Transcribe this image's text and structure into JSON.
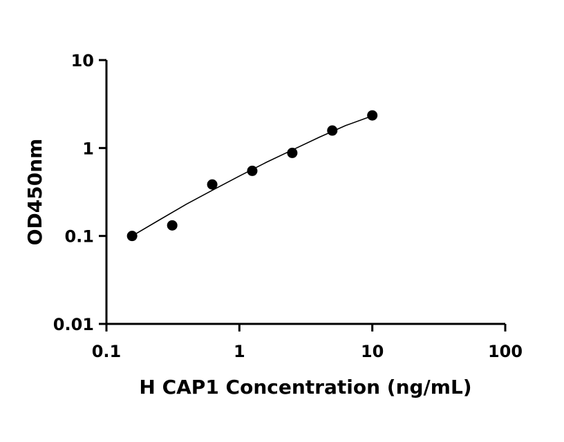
{
  "chart_data": {
    "type": "scatter",
    "title": "",
    "xlabel": "H CAP1 Concentration (ng/mL)",
    "ylabel": "OD450nm",
    "xscale": "log",
    "yscale": "log",
    "xlim": [
      0.1,
      100
    ],
    "ylim": [
      0.01,
      10
    ],
    "xticks": [
      {
        "value": 0.1,
        "label": "0.1"
      },
      {
        "value": 1,
        "label": "1"
      },
      {
        "value": 10,
        "label": "10"
      },
      {
        "value": 100,
        "label": "100"
      }
    ],
    "yticks": [
      {
        "value": 0.01,
        "label": "0.01"
      },
      {
        "value": 0.1,
        "label": "0.1"
      },
      {
        "value": 1,
        "label": "1"
      },
      {
        "value": 10,
        "label": "10"
      }
    ],
    "grid": false,
    "legend": "none",
    "series": [
      {
        "kind": "points",
        "color": "#000000",
        "x": [
          0.156,
          0.3125,
          0.625,
          1.25,
          2.5,
          5,
          10
        ],
        "y": [
          0.1,
          0.132,
          0.385,
          0.55,
          0.88,
          1.58,
          2.35
        ]
      },
      {
        "kind": "fit-line",
        "color": "#000000",
        "x": [
          0.156,
          0.25,
          0.4,
          0.625,
          1,
          1.6,
          2.5,
          4,
          6.3,
          10
        ],
        "y": [
          0.1,
          0.152,
          0.23,
          0.33,
          0.48,
          0.69,
          0.95,
          1.33,
          1.8,
          2.32
        ]
      }
    ]
  }
}
